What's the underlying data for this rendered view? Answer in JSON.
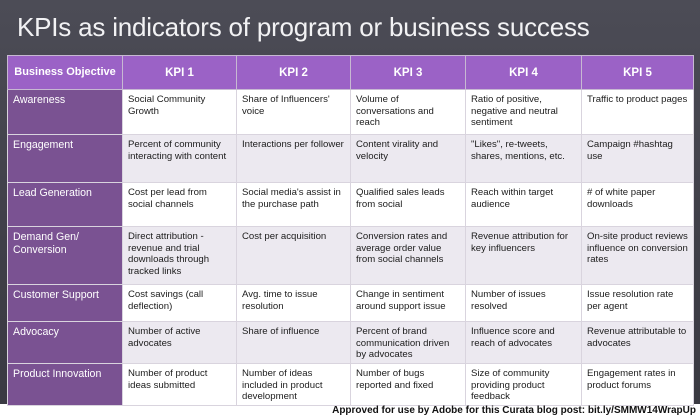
{
  "title": "KPIs as indicators of program or business success",
  "header": {
    "objective": "Business Objective",
    "kpis": [
      "KPI 1",
      "KPI 2",
      "KPI 3",
      "KPI 4",
      "KPI 5"
    ]
  },
  "rows": [
    {
      "objective": "Awareness",
      "kpis": [
        "Social Community Growth",
        "Share of Influencers' voice",
        "Volume of conversations and reach",
        "Ratio of positive, negative and neutral sentiment",
        "Traffic to product pages"
      ]
    },
    {
      "objective": "Engagement",
      "kpis": [
        "Percent of community interacting with content",
        "Interactions per follower",
        "Content virality and velocity",
        "\"Likes\", re-tweets, shares, mentions, etc.",
        "Campaign #hashtag use"
      ]
    },
    {
      "objective": "Lead Generation",
      "kpis": [
        "Cost per lead from social channels",
        "Social media's assist in the purchase path",
        "Qualified sales leads from social",
        "Reach within target audience",
        "# of white paper downloads"
      ]
    },
    {
      "objective": "Demand Gen/ Conversion",
      "kpis": [
        "Direct attribution - revenue and trial downloads through tracked links",
        "Cost per acquisition",
        "Conversion rates and average order value from social channels",
        "Revenue attribution for key influencers",
        "On-site product reviews influence on conversion rates"
      ]
    },
    {
      "objective": "Customer Support",
      "kpis": [
        "Cost savings (call deflection)",
        "Avg. time to issue resolution",
        "Change in sentiment around support issue",
        "Number of issues resolved",
        "Issue resolution rate per agent"
      ]
    },
    {
      "objective": "Advocacy",
      "kpis": [
        "Number of active advocates",
        "Share of influence",
        "Percent of brand communication driven by advocates",
        "Influence score and reach of advocates",
        "Revenue attributable to advocates"
      ]
    },
    {
      "objective": "Product Innovation",
      "kpis": [
        "Number of product ideas submitted",
        "Number of ideas included in product development",
        "Number of bugs reported and fixed",
        "Size of community providing product feedback",
        "Engagement rates in product forums"
      ]
    }
  ],
  "credit": "Approved for use by Adobe for this Curata blog post: bit.ly/SMMW14WrapUp"
}
